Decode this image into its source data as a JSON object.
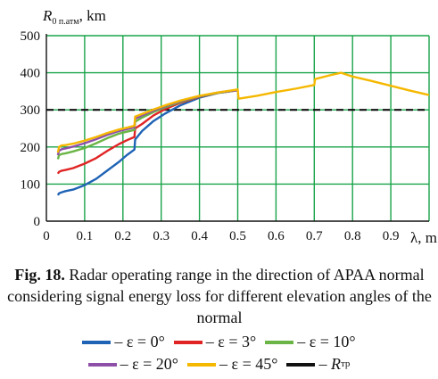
{
  "chart_data": {
    "type": "line",
    "ylabel_symbol": "R",
    "ylabel_sub": "0 п.атм",
    "ylabel_unit": ", km",
    "xlabel": "λ, m",
    "xlim": [
      0,
      1.0
    ],
    "ylim": [
      0,
      500
    ],
    "xticks": [
      "0",
      "0.1",
      "0.2",
      "0.3",
      "0.4",
      "0.5",
      "0.6",
      "0.7",
      "0.8",
      "0.9"
    ],
    "yticks": [
      "0",
      "100",
      "200",
      "300",
      "400",
      "500"
    ],
    "grid": true,
    "grid_color": "#1aa34a",
    "series": [
      {
        "name": "– ε = 0°",
        "color": "#1f63b5",
        "x": [
          0.03,
          0.033,
          0.04,
          0.05,
          0.07,
          0.1,
          0.13,
          0.16,
          0.19,
          0.21,
          0.23,
          0.232,
          0.25,
          0.28,
          0.31,
          0.35,
          0.4,
          0.45,
          0.5
        ],
        "y": [
          70,
          75,
          78,
          81,
          85,
          97,
          114,
          137,
          160,
          178,
          193,
          220,
          243,
          270,
          290,
          312,
          333,
          346,
          353
        ]
      },
      {
        "name": "– ε = 3°",
        "color": "#e02424",
        "x": [
          0.03,
          0.033,
          0.04,
          0.05,
          0.07,
          0.1,
          0.13,
          0.16,
          0.19,
          0.21,
          0.23,
          0.232,
          0.25,
          0.28,
          0.31,
          0.35,
          0.4,
          0.45,
          0.5
        ],
        "y": [
          128,
          133,
          136,
          138,
          143,
          155,
          170,
          190,
          208,
          218,
          227,
          250,
          262,
          285,
          302,
          319,
          335,
          346,
          353
        ]
      },
      {
        "name": "– ε = 10°",
        "color": "#6ab545",
        "x": [
          0.03,
          0.033,
          0.04,
          0.05,
          0.07,
          0.1,
          0.13,
          0.16,
          0.19,
          0.21,
          0.23,
          0.232,
          0.25,
          0.28,
          0.31,
          0.35,
          0.4,
          0.45,
          0.5
        ],
        "y": [
          167,
          178,
          181,
          183,
          188,
          197,
          210,
          224,
          236,
          241,
          246,
          268,
          279,
          294,
          307,
          321,
          336,
          346,
          353
        ]
      },
      {
        "name": "– ε = 20°",
        "color": "#8e4fa8",
        "x": [
          0.03,
          0.033,
          0.04,
          0.05,
          0.07,
          0.1,
          0.13,
          0.16,
          0.19,
          0.21,
          0.23,
          0.232,
          0.25,
          0.28,
          0.31,
          0.35,
          0.4,
          0.45,
          0.5
        ],
        "y": [
          178,
          190,
          194,
          196,
          201,
          210,
          221,
          233,
          243,
          248,
          253,
          276,
          285,
          298,
          310,
          323,
          337,
          347,
          353
        ]
      },
      {
        "name": "– ε = 45°",
        "color": "#f5b800",
        "x": [
          0.03,
          0.033,
          0.04,
          0.05,
          0.07,
          0.1,
          0.13,
          0.16,
          0.19,
          0.21,
          0.23,
          0.232,
          0.25,
          0.28,
          0.31,
          0.35,
          0.4,
          0.45,
          0.5,
          0.502,
          0.55,
          0.6,
          0.65,
          0.7,
          0.702,
          0.74,
          0.77,
          0.8,
          0.85,
          0.9,
          0.95,
          1.0
        ],
        "y": [
          185,
          200,
          204,
          205,
          209,
          217,
          227,
          238,
          247,
          252,
          257,
          282,
          289,
          301,
          312,
          325,
          338,
          347,
          355,
          330,
          338,
          348,
          357,
          367,
          383,
          393,
          400,
          390,
          378,
          365,
          352,
          340
        ]
      },
      {
        "name": "– R",
        "name_sub": "тр",
        "color": "#111111",
        "dashed": true,
        "x": [
          0,
          1.0
        ],
        "y": [
          300,
          300
        ]
      }
    ]
  },
  "caption": {
    "label": "Fig. 18.",
    "text": " Radar operating range in the direction of APAA normal considering signal energy loss for different elevation angles of the normal"
  }
}
